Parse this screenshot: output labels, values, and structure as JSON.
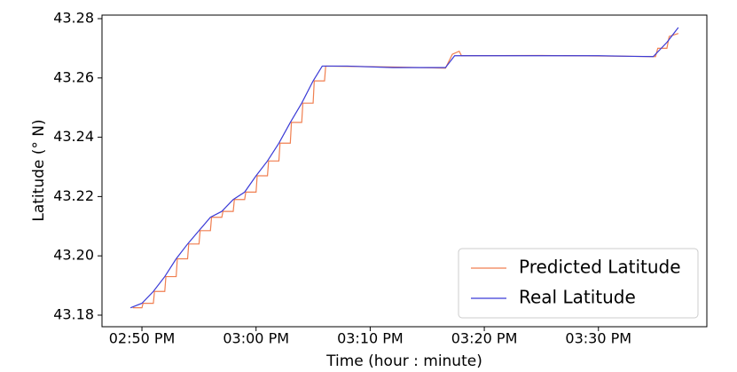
{
  "chart_data": {
    "type": "line",
    "xlabel": "Time (hour : minute)",
    "ylabel": "Latitude ($^\\circ$N)",
    "xlim": [
      46.5,
      99.5
    ],
    "xticks": [
      {
        "value": 50,
        "label": "02:50 PM"
      },
      {
        "value": 60,
        "label": "03:00 PM"
      },
      {
        "value": 70,
        "label": "03:10 PM"
      },
      {
        "value": 80,
        "label": "03:20 PM"
      },
      {
        "value": 90,
        "label": "03:30 PM"
      }
    ],
    "ylim": [
      43.1761,
      43.2812
    ],
    "yticks": [
      {
        "value": 43.18,
        "label": "43.18"
      },
      {
        "value": 43.2,
        "label": "43.20"
      },
      {
        "value": 43.22,
        "label": "43.22"
      },
      {
        "value": 43.24,
        "label": "43.24"
      },
      {
        "value": 43.26,
        "label": "43.26"
      },
      {
        "value": 43.28,
        "label": "43.28"
      }
    ],
    "legend": "lower right",
    "series": [
      {
        "name": "Predicted Latitude",
        "color": "#f07f50",
        "x": [
          49.2,
          50,
          50.1,
          51,
          51.1,
          52,
          52.1,
          53,
          53.1,
          54,
          54.1,
          55,
          55.1,
          56,
          56.1,
          57,
          57.1,
          58,
          58.1,
          59,
          59.1,
          60,
          60.1,
          61,
          61.1,
          62,
          62.1,
          63,
          63.1,
          64,
          64.1,
          65,
          65.1,
          66,
          66.1,
          72,
          76.6,
          77.2,
          77.8,
          78,
          85,
          93,
          95,
          95.2,
          96,
          96.2,
          97
        ],
        "values": [
          43.1825,
          43.1825,
          43.184,
          43.184,
          43.188,
          43.188,
          43.193,
          43.193,
          43.199,
          43.199,
          43.204,
          43.204,
          43.2085,
          43.2085,
          43.213,
          43.213,
          43.215,
          43.215,
          43.219,
          43.219,
          43.2215,
          43.2215,
          43.227,
          43.227,
          43.232,
          43.232,
          43.238,
          43.238,
          43.245,
          43.245,
          43.2515,
          43.2515,
          43.259,
          43.259,
          43.264,
          43.2637,
          43.2633,
          43.268,
          43.269,
          43.2675,
          43.2676,
          43.2673,
          43.2672,
          43.27,
          43.27,
          43.274,
          43.275
        ]
      },
      {
        "name": "Real Latitude",
        "color": "#3a3ad6",
        "x": [
          49,
          50,
          51,
          52,
          53,
          54,
          55,
          56,
          57,
          58,
          59,
          60,
          61,
          62,
          63,
          64,
          65,
          65.8,
          68,
          72,
          76,
          76.6,
          77.4,
          80,
          85,
          90,
          93,
          94.8,
          96,
          97
        ],
        "values": [
          43.1825,
          43.184,
          43.188,
          43.193,
          43.199,
          43.204,
          43.2085,
          43.213,
          43.215,
          43.219,
          43.2215,
          43.227,
          43.232,
          43.238,
          43.245,
          43.2515,
          43.259,
          43.264,
          43.264,
          43.2635,
          43.2635,
          43.2635,
          43.2675,
          43.2675,
          43.2675,
          43.2675,
          43.2673,
          43.2672,
          43.272,
          43.277
        ]
      }
    ]
  }
}
